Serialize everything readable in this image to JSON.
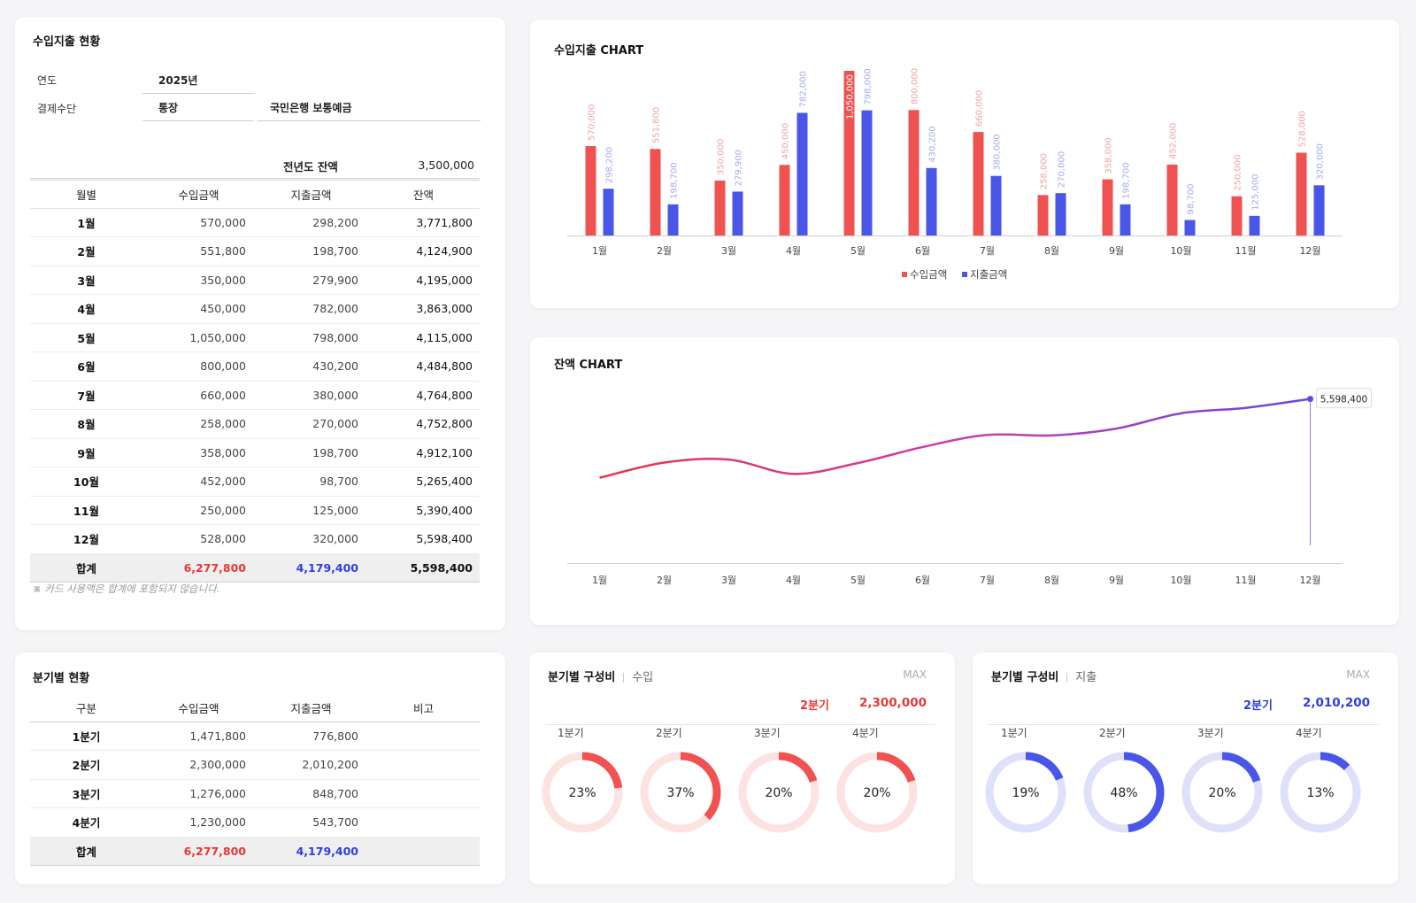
{
  "summary": {
    "title": "수입지출 현황",
    "year_label": "연도",
    "year_value": "2025년",
    "payment_label": "결제수단",
    "payment_type": "통장",
    "payment_account": "국민은행 보통예금",
    "prev_balance_label": "전년도 잔액",
    "prev_balance_value": "3,500,000",
    "headers": [
      "월별",
      "수입금액",
      "지출금액",
      "잔액"
    ],
    "rows": [
      {
        "month": "1월",
        "income": "570,000",
        "expense": "298,200",
        "balance": "3,771,800"
      },
      {
        "month": "2월",
        "income": "551,800",
        "expense": "198,700",
        "balance": "4,124,900"
      },
      {
        "month": "3월",
        "income": "350,000",
        "expense": "279,900",
        "balance": "4,195,000"
      },
      {
        "month": "4월",
        "income": "450,000",
        "expense": "782,000",
        "balance": "3,863,000"
      },
      {
        "month": "5월",
        "income": "1,050,000",
        "expense": "798,000",
        "balance": "4,115,000"
      },
      {
        "month": "6월",
        "income": "800,000",
        "expense": "430,200",
        "balance": "4,484,800"
      },
      {
        "month": "7월",
        "income": "660,000",
        "expense": "380,000",
        "balance": "4,764,800"
      },
      {
        "month": "8월",
        "income": "258,000",
        "expense": "270,000",
        "balance": "4,752,800"
      },
      {
        "month": "9월",
        "income": "358,000",
        "expense": "198,700",
        "balance": "4,912,100"
      },
      {
        "month": "10월",
        "income": "452,000",
        "expense": "98,700",
        "balance": "5,265,400"
      },
      {
        "month": "11월",
        "income": "250,000",
        "expense": "125,000",
        "balance": "5,390,400"
      },
      {
        "month": "12월",
        "income": "528,000",
        "expense": "320,000",
        "balance": "5,598,400"
      }
    ],
    "total": {
      "label": "합계",
      "income": "6,277,800",
      "expense": "4,179,400",
      "balance": "5,598,400"
    },
    "note": "※ 카드 사용액은 합계에 포함되지 않습니다."
  },
  "quarter": {
    "title": "분기별 현황",
    "headers": [
      "구분",
      "수입금액",
      "지출금액",
      "비고"
    ],
    "rows": [
      {
        "q": "1분기",
        "income": "1,471,800",
        "expense": "776,800",
        "memo": ""
      },
      {
        "q": "2분기",
        "income": "2,300,000",
        "expense": "2,010,200",
        "memo": ""
      },
      {
        "q": "3분기",
        "income": "1,276,000",
        "expense": "848,700",
        "memo": ""
      },
      {
        "q": "4분기",
        "income": "1,230,000",
        "expense": "543,700",
        "memo": ""
      }
    ],
    "total": {
      "label": "합계",
      "income": "6,277,800",
      "expense": "4,179,400",
      "memo": ""
    }
  },
  "donut_in": {
    "title": "분기별 구성비",
    "type": "수입",
    "max_label": "MAX",
    "max_quarter": "2분기",
    "max_value": "2,300,000",
    "items": [
      {
        "label": "1분기",
        "pct_text": "23%",
        "pct": 23
      },
      {
        "label": "2분기",
        "pct_text": "37%",
        "pct": 37
      },
      {
        "label": "3분기",
        "pct_text": "20%",
        "pct": 20
      },
      {
        "label": "4분기",
        "pct_text": "20%",
        "pct": 20
      }
    ]
  },
  "donut_out": {
    "title": "분기별 구성비",
    "type": "지출",
    "max_label": "MAX",
    "max_quarter": "2분기",
    "max_value": "2,010,200",
    "items": [
      {
        "label": "1분기",
        "pct_text": "19%",
        "pct": 19
      },
      {
        "label": "2분기",
        "pct_text": "48%",
        "pct": 48
      },
      {
        "label": "3분기",
        "pct_text": "20%",
        "pct": 20
      },
      {
        "label": "4분기",
        "pct_text": "13%",
        "pct": 13
      }
    ]
  },
  "colors": {
    "income": "#f05252",
    "expense": "#4a56e8",
    "income_light": "#fde2e2",
    "expense_light": "#dfe1fb",
    "income_text": "#e53935",
    "expense_text": "#2e3de0"
  },
  "chart_data": [
    {
      "type": "bar",
      "title": "수입지출 CHART",
      "categories": [
        "1월",
        "2월",
        "3월",
        "4월",
        "5월",
        "6월",
        "7월",
        "8월",
        "9월",
        "10월",
        "11월",
        "12월"
      ],
      "series": [
        {
          "name": "수입금액",
          "values": [
            570000,
            551800,
            350000,
            450000,
            1050000,
            800000,
            660000,
            258000,
            358000,
            452000,
            250000,
            528000
          ],
          "labels": [
            "570,000",
            "551,800",
            "350,000",
            "450,000",
            "1,050,000",
            "800,000",
            "660,000",
            "258,000",
            "358,000",
            "452,000",
            "250,000",
            "528,000"
          ]
        },
        {
          "name": "지출금액",
          "values": [
            298200,
            198700,
            279900,
            782000,
            798000,
            430200,
            380000,
            270000,
            198700,
            98700,
            125000,
            320000
          ],
          "labels": [
            "298,200",
            "198,700",
            "279,900",
            "782,000",
            "798,000",
            "430,200",
            "380,000",
            "270,000",
            "198,700",
            "98,700",
            "125,000",
            "320,000"
          ]
        }
      ],
      "ylim": [
        0,
        1050000
      ],
      "legend": "bottom-center"
    },
    {
      "type": "line",
      "title": "잔액 CHART",
      "categories": [
        "1월",
        "2월",
        "3월",
        "4월",
        "5월",
        "6월",
        "7월",
        "8월",
        "9월",
        "10월",
        "11월",
        "12월"
      ],
      "series": [
        {
          "name": "잔액",
          "values": [
            3771800,
            4124900,
            4195000,
            3863000,
            4115000,
            4484800,
            4764800,
            4752800,
            4912100,
            5265400,
            5390400,
            5598400
          ]
        }
      ],
      "ylim": [
        0,
        6000000
      ],
      "annotation": {
        "category": "12월",
        "label": "5,598,400"
      }
    }
  ]
}
